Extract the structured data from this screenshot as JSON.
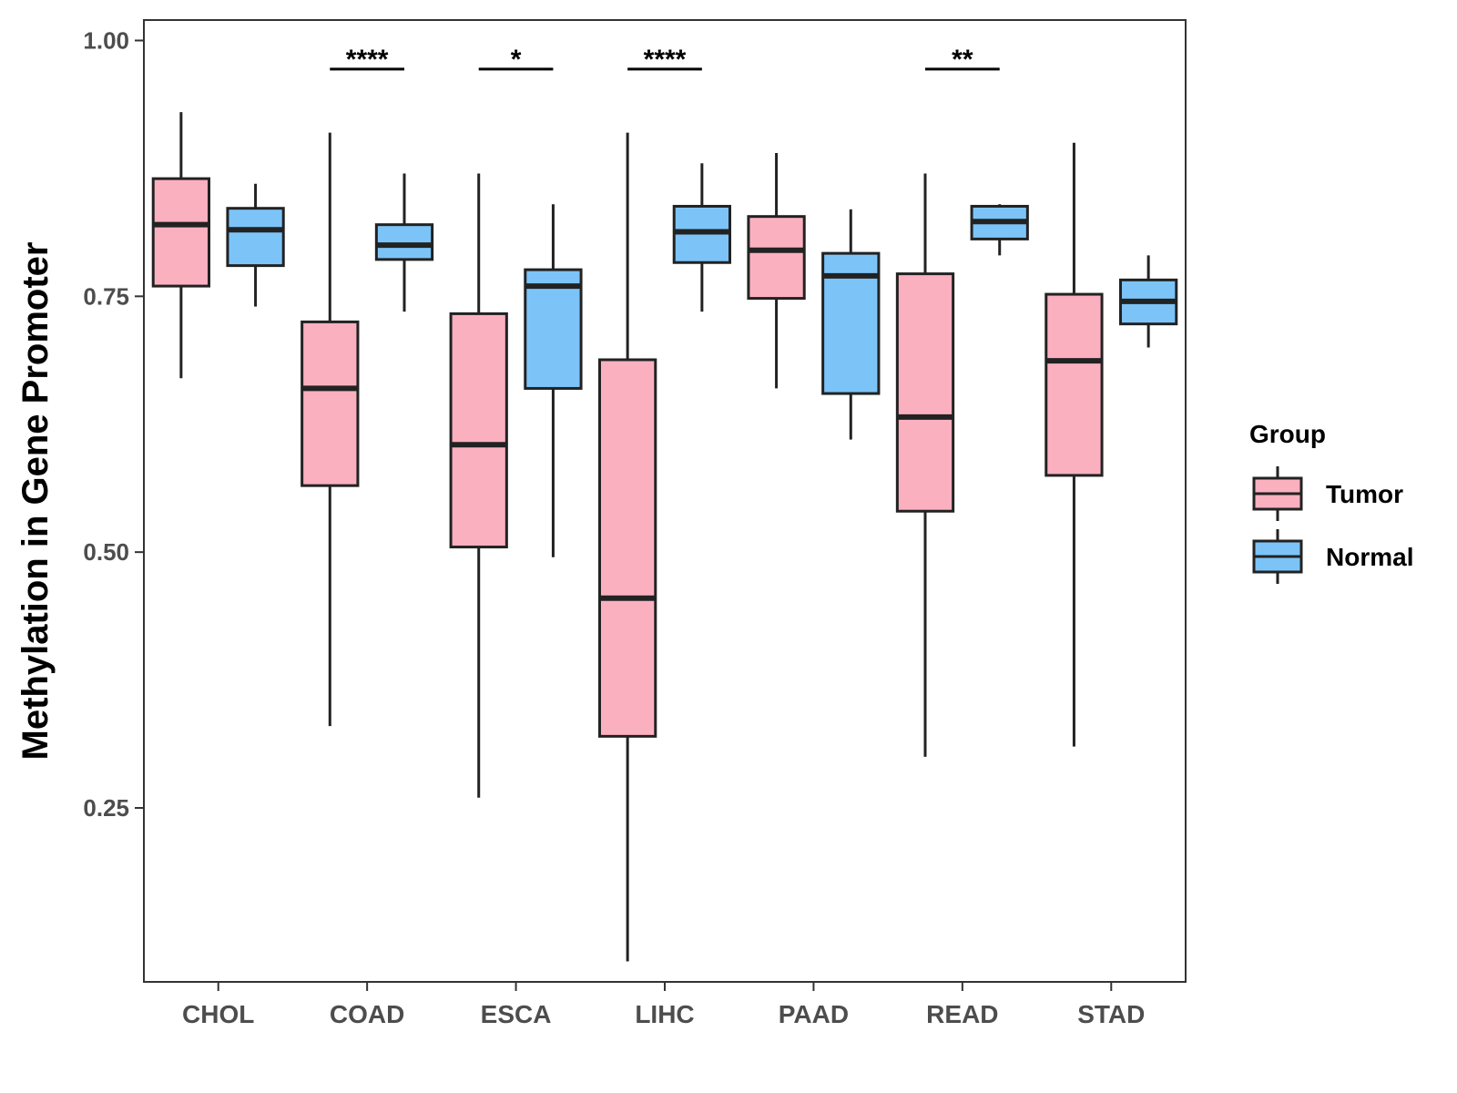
{
  "chart_data": {
    "type": "boxplot",
    "title": "",
    "xlabel": "",
    "ylabel": "Methylation in Gene Promoter",
    "ylim": [
      0.08,
      1.02
    ],
    "yticks": [
      0.25,
      0.5,
      0.75,
      1.0
    ],
    "ytick_labels": [
      "0.25",
      "0.50",
      "0.75",
      "1.00"
    ],
    "grid": false,
    "legend_position": "right",
    "legend_title": "Group",
    "categories": [
      "CHOL",
      "COAD",
      "ESCA",
      "LIHC",
      "PAAD",
      "READ",
      "STAD"
    ],
    "series": [
      {
        "name": "Tumor",
        "color": "#fbb0c0",
        "boxes": [
          {
            "min": 0.67,
            "q1": 0.76,
            "median": 0.82,
            "q3": 0.865,
            "max": 0.93
          },
          {
            "min": 0.33,
            "q1": 0.565,
            "median": 0.66,
            "q3": 0.725,
            "max": 0.91
          },
          {
            "min": 0.26,
            "q1": 0.505,
            "median": 0.605,
            "q3": 0.733,
            "max": 0.87
          },
          {
            "min": 0.1,
            "q1": 0.32,
            "median": 0.455,
            "q3": 0.688,
            "max": 0.91
          },
          {
            "min": 0.66,
            "q1": 0.748,
            "median": 0.795,
            "q3": 0.828,
            "max": 0.89
          },
          {
            "min": 0.3,
            "q1": 0.54,
            "median": 0.632,
            "q3": 0.772,
            "max": 0.87
          },
          {
            "min": 0.31,
            "q1": 0.575,
            "median": 0.687,
            "q3": 0.752,
            "max": 0.9
          }
        ]
      },
      {
        "name": "Normal",
        "color": "#7cc4f8",
        "boxes": [
          {
            "min": 0.74,
            "q1": 0.78,
            "median": 0.815,
            "q3": 0.836,
            "max": 0.86
          },
          {
            "min": 0.735,
            "q1": 0.786,
            "median": 0.8,
            "q3": 0.82,
            "max": 0.87
          },
          {
            "min": 0.495,
            "q1": 0.66,
            "median": 0.76,
            "q3": 0.776,
            "max": 0.84
          },
          {
            "min": 0.735,
            "q1": 0.783,
            "median": 0.813,
            "q3": 0.838,
            "max": 0.88
          },
          {
            "min": 0.61,
            "q1": 0.655,
            "median": 0.77,
            "q3": 0.792,
            "max": 0.835
          },
          {
            "min": 0.79,
            "q1": 0.806,
            "median": 0.823,
            "q3": 0.838,
            "max": 0.84
          },
          {
            "min": 0.7,
            "q1": 0.723,
            "median": 0.745,
            "q3": 0.766,
            "max": 0.79
          }
        ]
      }
    ],
    "significance": [
      {
        "category": "COAD",
        "label": "****",
        "y": 0.972
      },
      {
        "category": "ESCA",
        "label": "*",
        "y": 0.972
      },
      {
        "category": "LIHC",
        "label": "****",
        "y": 0.972
      },
      {
        "category": "READ",
        "label": "**",
        "y": 0.972
      }
    ]
  }
}
